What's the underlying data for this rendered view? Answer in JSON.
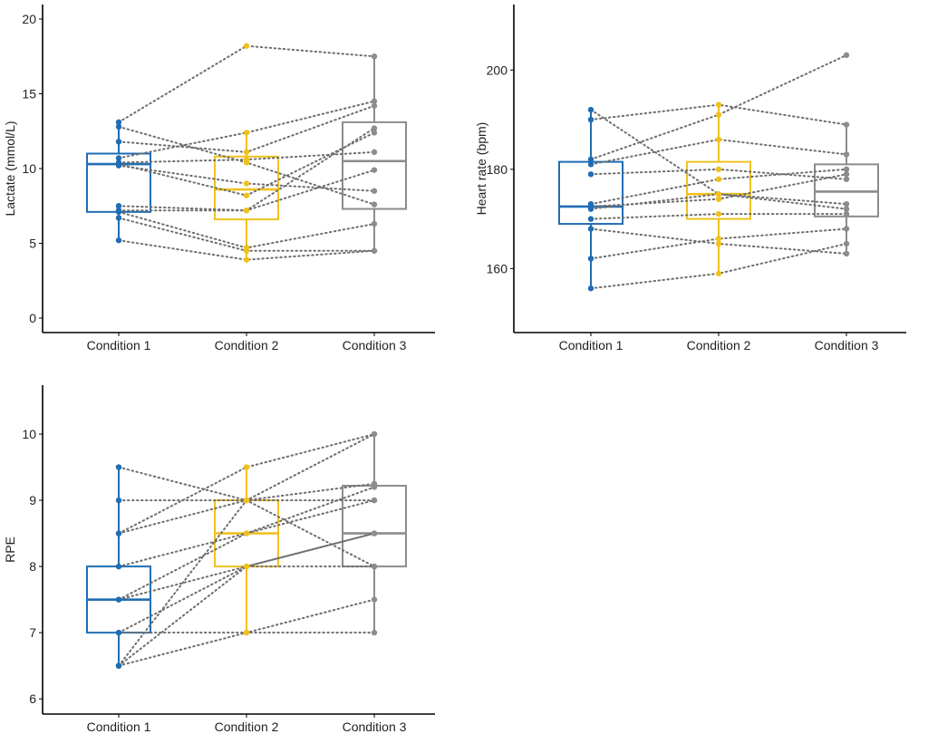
{
  "colors": {
    "Condition 1": "#1f6db4",
    "Condition 2": "#efc11f",
    "Condition 3": "#8c8c8c",
    "lines": "#6e6e6e"
  },
  "chart_data": [
    {
      "type": "box",
      "title": "",
      "xlabel": "",
      "ylabel": "Lactate (mmol/L)",
      "categories": [
        "Condition 1",
        "Condition 2",
        "Condition 3"
      ],
      "yticks": [
        0,
        5,
        10,
        15,
        20
      ],
      "ylim": [
        -0.97,
        20.97
      ],
      "boxes": [
        {
          "q1": 7.1,
          "median": 10.3,
          "q3": 11.0,
          "wlo": 5.2,
          "whi": 13.1
        },
        {
          "q1": 6.6,
          "median": 8.6,
          "q3": 10.8,
          "wlo": 3.9,
          "whi": 12.4
        },
        {
          "q1": 7.3,
          "median": 10.5,
          "q3": 13.1,
          "wlo": 4.5,
          "whi": 17.5
        }
      ],
      "subjects": [
        [
          13.1,
          18.2,
          17.5
        ],
        [
          12.8,
          10.4,
          7.6
        ],
        [
          11.8,
          11.1,
          14.2
        ],
        [
          10.7,
          12.4,
          14.5
        ],
        [
          10.4,
          10.6,
          11.1
        ],
        [
          10.2,
          9.0,
          8.5
        ],
        [
          10.3,
          8.2,
          12.4
        ],
        [
          7.5,
          7.2,
          12.7
        ],
        [
          7.2,
          7.2,
          9.9
        ],
        [
          7.1,
          4.7,
          6.3
        ],
        [
          6.7,
          4.5,
          4.5
        ],
        [
          5.2,
          3.9,
          4.5
        ]
      ]
    },
    {
      "type": "box",
      "title": "",
      "xlabel": "",
      "ylabel": "Heart rate (bpm)",
      "categories": [
        "Condition 1",
        "Condition 2",
        "Condition 3"
      ],
      "yticks": [
        160,
        180,
        200
      ],
      "ylim": [
        147.1,
        213.2
      ],
      "boxes": [
        {
          "q1": 169,
          "median": 172.5,
          "q3": 181.5,
          "wlo": 156,
          "whi": 192
        },
        {
          "q1": 170,
          "median": 175,
          "q3": 181.5,
          "wlo": 159,
          "whi": 193
        },
        {
          "q1": 170.5,
          "median": 175.5,
          "q3": 181,
          "wlo": 163,
          "whi": 189
        }
      ],
      "subjects": [
        [
          192,
          175,
          172
        ],
        [
          190,
          193,
          189
        ],
        [
          182,
          191,
          203
        ],
        [
          181,
          186,
          183
        ],
        [
          179,
          180,
          178
        ],
        [
          173,
          178,
          180
        ],
        [
          172.5,
          174,
          179
        ],
        [
          172,
          175,
          173
        ],
        [
          170,
          171,
          171
        ],
        [
          168,
          165,
          163
        ],
        [
          162,
          166,
          168
        ],
        [
          156,
          159,
          165
        ]
      ]
    },
    {
      "type": "box",
      "title": "",
      "xlabel": "",
      "ylabel": "RPE",
      "categories": [
        "Condition 1",
        "Condition 2",
        "Condition 3"
      ],
      "yticks": [
        6,
        7,
        8,
        9,
        10
      ],
      "ylim": [
        5.77,
        10.74
      ],
      "boxes": [
        {
          "q1": 7,
          "median": 7.5,
          "q3": 8,
          "wlo": 6.5,
          "whi": 9.5
        },
        {
          "q1": 8,
          "median": 8.5,
          "q3": 9,
          "wlo": 7,
          "whi": 9.5
        },
        {
          "q1": 8,
          "median": 8.5,
          "q3": 9.22,
          "wlo": 7,
          "whi": 10
        }
      ],
      "subjects": [
        [
          9.5,
          9,
          8
        ],
        [
          9,
          9,
          9
        ],
        [
          8.5,
          9,
          9.25
        ],
        [
          8.5,
          9.5,
          10
        ],
        [
          8,
          8.5,
          9.2
        ],
        [
          7.5,
          8,
          8.5
        ],
        [
          7.5,
          8.5,
          9
        ],
        [
          7,
          8,
          8
        ],
        [
          7,
          7,
          7.5
        ],
        [
          6.5,
          9,
          10
        ],
        [
          6.5,
          8,
          8.5
        ],
        [
          6.5,
          7,
          7
        ]
      ]
    }
  ]
}
